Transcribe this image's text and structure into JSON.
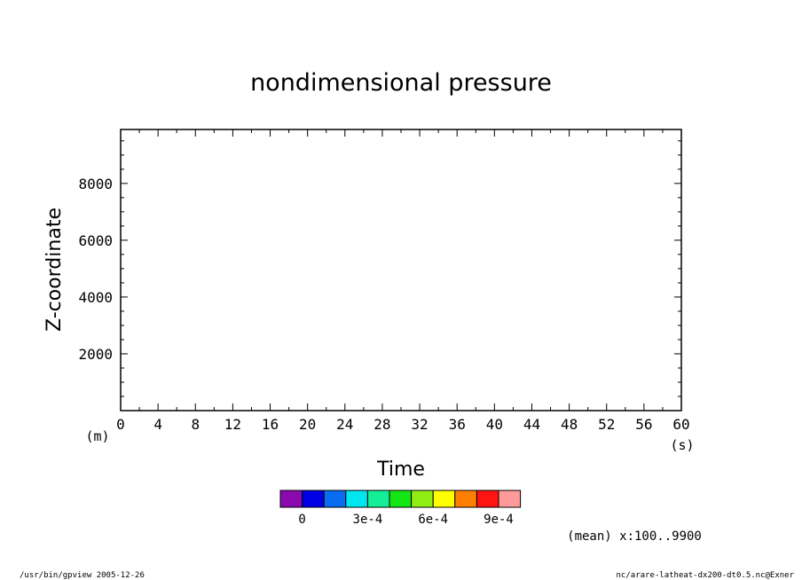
{
  "chart_data": {
    "type": "heatmap",
    "title": "nondimensional pressure",
    "xlabel": "Time",
    "ylabel": "Z-coordinate",
    "x_unit": "(s)",
    "y_unit": "(m)",
    "xlim": [
      0,
      60
    ],
    "ylim": [
      0,
      9900
    ],
    "x_ticks": [
      "0",
      "4",
      "8",
      "12",
      "16",
      "20",
      "24",
      "28",
      "32",
      "36",
      "40",
      "44",
      "48",
      "52",
      "56",
      "60"
    ],
    "x_major_values": [
      0,
      4,
      8,
      12,
      16,
      20,
      24,
      28,
      32,
      36,
      40,
      44,
      48,
      52,
      56,
      60
    ],
    "x_minor_step": 2,
    "y_ticks": [
      "2000",
      "4000",
      "6000",
      "8000"
    ],
    "y_major_values": [
      2000,
      4000,
      6000,
      8000
    ],
    "y_minor_step": 500,
    "grid": false,
    "series": [],
    "colorbar": {
      "colors": [
        "#8a0ab0",
        "#0000e6",
        "#0a6cf0",
        "#00e6f0",
        "#14ee96",
        "#14e614",
        "#90ee14",
        "#ffff00",
        "#ff8000",
        "#ff1414",
        "#ff9a9a"
      ],
      "labels": [
        "0",
        "3e-4",
        "6e-4",
        "9e-4"
      ]
    },
    "annotation": "(mean) x:100..9900"
  },
  "footer": {
    "left": "/usr/bin/gpview  2005-12-26",
    "right": "nc/arare-latheat-dx200-dt0.5.nc@Exner"
  }
}
